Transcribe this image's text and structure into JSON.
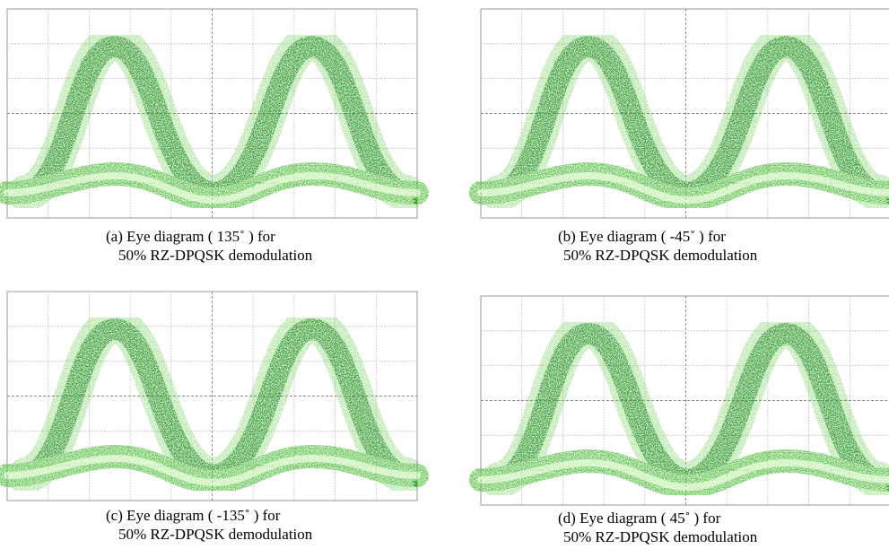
{
  "panels": [
    {
      "caption": [
        "(a)  Eye diagram ( 135˚ ) for",
        "50% RZ-DPQSK demodulation"
      ]
    },
    {
      "caption": [
        "(b)  Eye diagram ( -45˚ ) for",
        "50% RZ-DPQSK demodulation"
      ]
    },
    {
      "caption": [
        "(c)  Eye diagram ( -135˚ ) for",
        "50% RZ-DPQSK demodulation"
      ]
    },
    {
      "caption": [
        "(d)  Eye diagram ( 45˚ ) for",
        "50% RZ-DPQSK demodulation"
      ]
    }
  ]
}
